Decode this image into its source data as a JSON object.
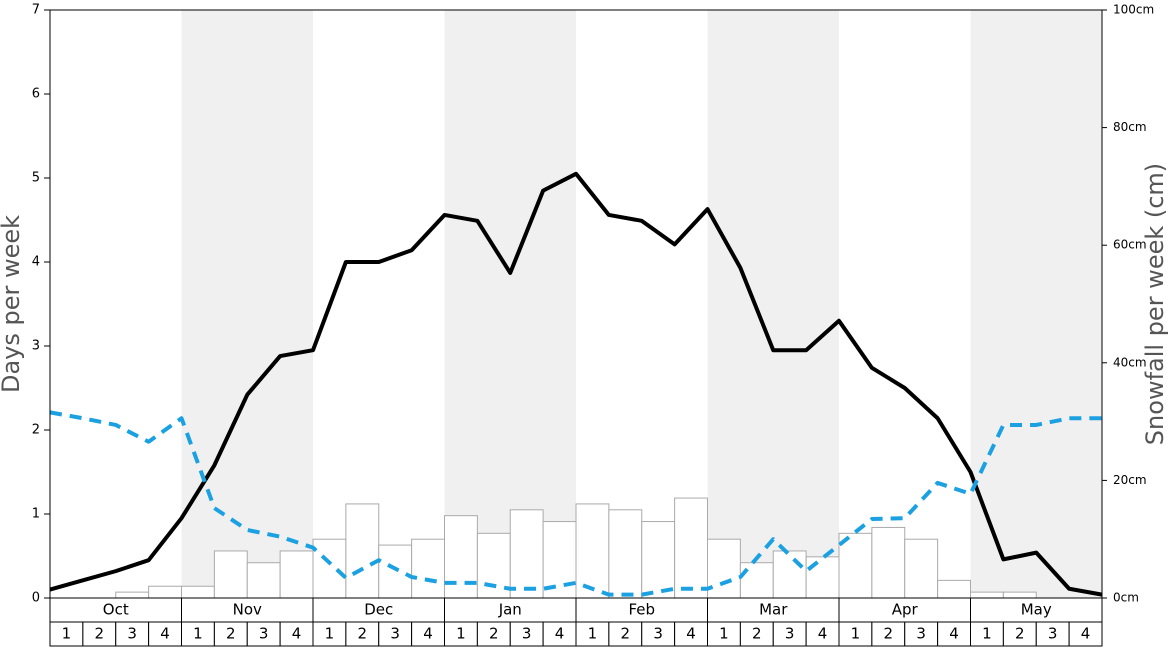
{
  "chart_data": {
    "type": "weekly-combo",
    "y_label": "Days per week",
    "y2_label": "Snowfall per week (cm)",
    "months": [
      "Oct",
      "Nov",
      "Dec",
      "Jan",
      "Feb",
      "Mar",
      "Apr",
      "May"
    ],
    "categories": [
      "1",
      "2",
      "3",
      "4",
      "1",
      "2",
      "3",
      "4",
      "1",
      "2",
      "3",
      "4",
      "1",
      "2",
      "3",
      "4",
      "1",
      "2",
      "3",
      "4",
      "1",
      "2",
      "3",
      "4",
      "1",
      "2",
      "3",
      "4",
      "1",
      "2",
      "3",
      "4"
    ],
    "x": [
      0,
      1,
      2,
      3,
      4,
      5,
      6,
      7,
      8,
      9,
      10,
      11,
      12,
      13,
      14,
      15,
      16,
      17,
      18,
      19,
      20,
      21,
      22,
      23,
      24,
      25,
      26,
      27,
      28,
      29,
      30,
      31,
      32
    ],
    "xlim": [
      0,
      32
    ],
    "ylim": [
      0,
      7
    ],
    "yticks": [
      0,
      1,
      2,
      3,
      4,
      5,
      6,
      7
    ],
    "y2lim": [
      0,
      100
    ],
    "y2ticks": [
      {
        "value": 0,
        "label": "0cm"
      },
      {
        "value": 20,
        "label": "20cm"
      },
      {
        "value": 40,
        "label": "40cm"
      },
      {
        "value": 60,
        "label": "60cm"
      },
      {
        "value": 80,
        "label": "80cm"
      },
      {
        "value": 100,
        "label": "100cm"
      }
    ],
    "bars": {
      "axis": "y2",
      "color": "#ffffff",
      "edge_color": "#aaaaaa",
      "values": [
        0,
        0,
        1,
        2,
        2,
        8,
        6,
        8,
        10,
        16,
        9,
        10,
        14,
        11,
        15,
        13,
        16,
        15,
        13,
        17,
        10,
        6,
        8,
        7,
        11,
        12,
        10,
        3,
        1,
        1,
        0,
        0
      ]
    },
    "series": [
      {
        "color": "#000000",
        "dashed": false,
        "values": [
          0.1,
          0.21,
          0.32,
          0.45,
          0.95,
          1.58,
          2.42,
          2.88,
          2.95,
          4.0,
          4.0,
          4.14,
          4.56,
          4.49,
          3.87,
          4.85,
          5.05,
          4.56,
          4.49,
          4.21,
          4.63,
          3.93,
          2.95,
          2.95,
          3.3,
          2.74,
          2.5,
          2.14,
          1.5,
          0.46,
          0.54,
          0.11,
          0.04
        ]
      },
      {
        "color": "#1ba1e2",
        "dashed": true,
        "values": [
          2.21,
          2.14,
          2.06,
          1.86,
          2.14,
          1.07,
          0.81,
          0.73,
          0.6,
          0.24,
          0.45,
          0.25,
          0.18,
          0.18,
          0.11,
          0.11,
          0.18,
          0.04,
          0.04,
          0.11,
          0.11,
          0.25,
          0.7,
          0.32,
          0.63,
          0.94,
          0.95,
          1.37,
          1.24,
          2.06,
          2.06,
          2.14,
          2.14
        ]
      }
    ],
    "shade_color": "#f0f0f0"
  }
}
